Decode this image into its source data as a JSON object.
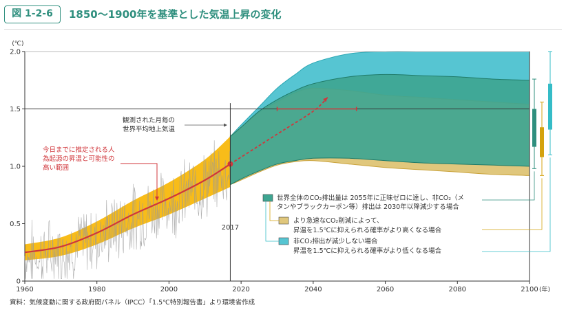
{
  "header": {
    "figure_number": "図 1-2-6",
    "title": "1850～1900年を基準とした気温上昇の変化"
  },
  "source": "資料：気候変動に関する政府間パネル（IPCC）「1.5℃特別報告書」より環境省作成",
  "chart_data": {
    "type": "area",
    "ylabel": "(℃)",
    "xlabel": "(年)",
    "xlim": [
      1960,
      2100
    ],
    "ylim": [
      0,
      2.0
    ],
    "x_ticks": [
      1960,
      1980,
      2000,
      2020,
      2040,
      2060,
      2080,
      2100
    ],
    "y_ticks": [
      0,
      0.5,
      1.0,
      1.5,
      2.0
    ],
    "y_tick_labels": [
      "0",
      "0.5",
      "1.0",
      "1.5",
      "2.0"
    ],
    "reference_line": {
      "y": 1.5
    },
    "marker_year": {
      "x": 2017,
      "label": "2017"
    },
    "annotations": {
      "observed": [
        "観測された月毎の",
        "世界平均地上気温"
      ],
      "human_induced": [
        "今日までに推定される人",
        "為起源の昇温と可能性の",
        "高い範囲"
      ]
    },
    "human_induced_line": {
      "x": [
        1960,
        1970,
        1980,
        1990,
        2000,
        2010,
        2017
      ],
      "y": [
        0.25,
        0.3,
        0.42,
        0.58,
        0.72,
        0.88,
        1.02
      ]
    },
    "human_induced_band": {
      "x": [
        1960,
        1970,
        1980,
        1990,
        2000,
        2010,
        2017
      ],
      "upper": [
        0.32,
        0.38,
        0.52,
        0.7,
        0.86,
        1.06,
        1.26
      ],
      "lower": [
        0.18,
        0.22,
        0.32,
        0.46,
        0.58,
        0.72,
        0.82
      ]
    },
    "projection_line": {
      "x": [
        2017,
        2030,
        2040,
        2044
      ],
      "y": [
        1.02,
        1.28,
        1.48,
        1.6
      ]
    },
    "horizontal_range": {
      "y": 1.5,
      "x_from": 2030,
      "x_to": 2052
    },
    "scenarios": [
      {
        "name": "世界全体のCO₂排出量は2055年に正味ゼロに達し、非CO₂（メタンやブラックカーボン等）排出は2030年以降減少する場合",
        "name_lines": [
          "世界全体のCO₂排出量は 2055年に正味ゼロに達し、非CO₂（メ",
          "タンやブラックカーボン等）排出は 2030年以降減少する場合"
        ],
        "color": "#3ea591",
        "x": [
          2017,
          2020,
          2025,
          2030,
          2035,
          2040,
          2050,
          2060,
          2070,
          2080,
          2090,
          2100
        ],
        "upper": [
          1.26,
          1.34,
          1.48,
          1.58,
          1.66,
          1.72,
          1.78,
          1.8,
          1.79,
          1.78,
          1.76,
          1.75
        ],
        "lower": [
          0.84,
          0.89,
          0.96,
          1.02,
          1.05,
          1.07,
          1.07,
          1.05,
          1.03,
          1.02,
          1.01,
          1.0
        ]
      },
      {
        "name": "より急速なCO₂削減によって、昇温を1.5℃に抑えられる確率がより高くなる場合",
        "name_lines": [
          "より急速なCO₂削減によって、",
          "昇温を1.5℃に抑えられる確率がより高くなる場合"
        ],
        "color": "#e0c77c",
        "x": [
          2017,
          2020,
          2025,
          2030,
          2035,
          2040,
          2050,
          2060,
          2070,
          2080,
          2090,
          2100
        ],
        "upper": [
          1.26,
          1.34,
          1.47,
          1.56,
          1.64,
          1.68,
          1.66,
          1.62,
          1.6,
          1.58,
          1.56,
          1.54
        ],
        "lower": [
          0.84,
          0.88,
          0.95,
          1.01,
          1.04,
          1.05,
          1.02,
          0.99,
          0.97,
          0.95,
          0.93,
          0.92
        ]
      },
      {
        "name": "非CO₂排出が減少しない場合 昇温を1.5℃に抑えられる確率がより低くなる場合",
        "name_lines": [
          "非CO₂排出が減少しない場合",
          "昇温を1.5℃に抑えられる確率がより低くなる場合"
        ],
        "color": "#56c5d2",
        "x": [
          2017,
          2020,
          2025,
          2030,
          2035,
          2040,
          2050,
          2060,
          2070,
          2080,
          2090,
          2100
        ],
        "upper": [
          1.26,
          1.36,
          1.52,
          1.68,
          1.8,
          1.9,
          1.98,
          2.0,
          2.0,
          2.0,
          2.0,
          2.0
        ],
        "lower": [
          0.84,
          0.92,
          1.0,
          1.06,
          1.1,
          1.12,
          1.14,
          1.14,
          1.14,
          1.13,
          1.12,
          1.12
        ]
      }
    ],
    "bars_2100": [
      {
        "color": "#2f8f7e",
        "whisker": [
          0.98,
          1.76
        ],
        "box": [
          1.17,
          1.5
        ]
      },
      {
        "color": "#d4a20e",
        "whisker": [
          0.92,
          1.56
        ],
        "box": [
          1.08,
          1.34
        ]
      },
      {
        "color": "#35bcc7",
        "whisker": [
          1.1,
          2.0
        ],
        "box": [
          1.32,
          1.72
        ]
      }
    ],
    "colors": {
      "band_orange": "#f7b500",
      "human_line": "#d0363b",
      "grid_dark": "#333333",
      "observed_noise": "#999999",
      "green_band_edge": "#1f7a68",
      "yellow_band_edge": "#c9a23a"
    }
  }
}
